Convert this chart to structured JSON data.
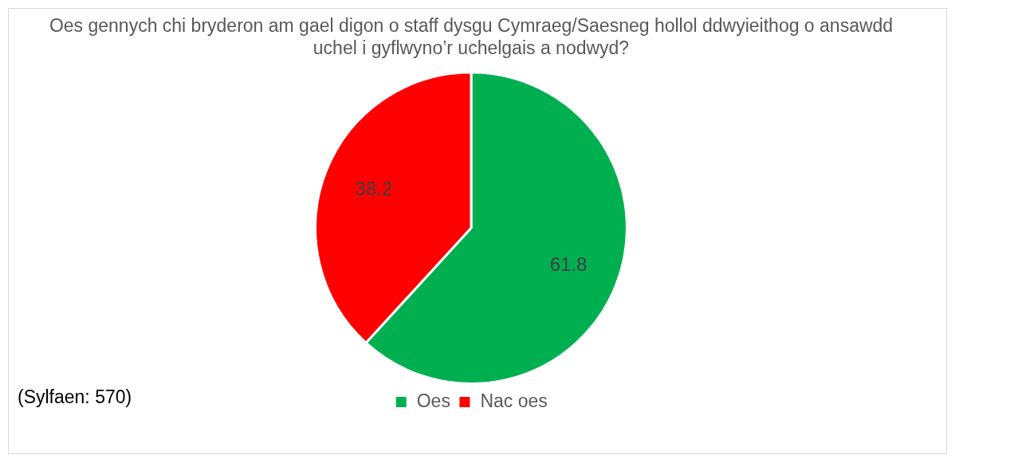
{
  "chart_data": {
    "type": "pie",
    "title": "Oes gennych chi bryderon am gael digon o staff dysgu Cymraeg/Saesneg hollol ddwyieithog o ansawdd uchel i gyflwyno’r uchelgais a nodwyd?",
    "categories": [
      "Oes",
      "Nac oes"
    ],
    "values": [
      61.8,
      38.2
    ],
    "colors": [
      "#00b050",
      "#ff0000"
    ],
    "data_labels": true,
    "legend": "bottom",
    "annotations": [
      "(Sylfaen: 570)"
    ]
  }
}
